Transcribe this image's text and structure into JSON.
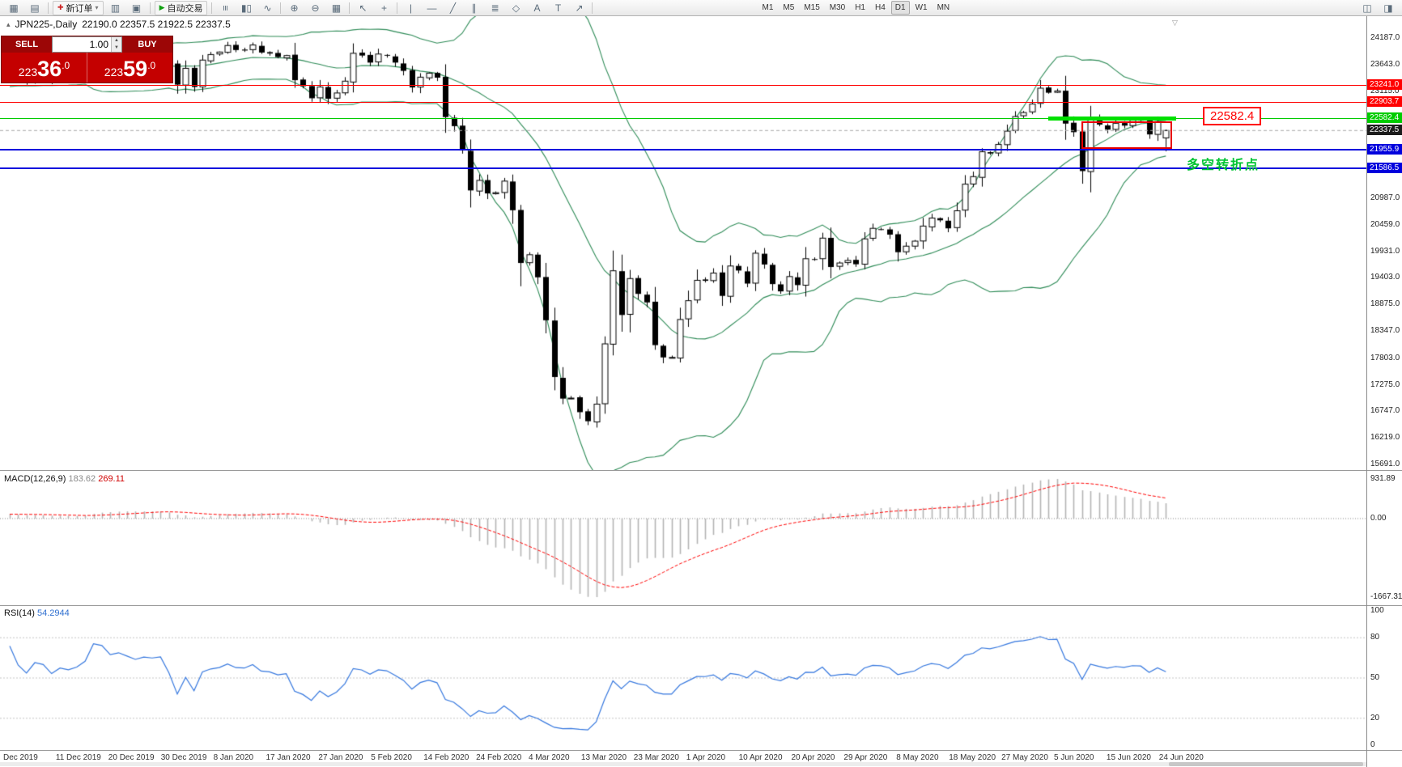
{
  "colors": {
    "candle_up": "#ffffff",
    "candle_down": "#000000",
    "candle_border": "#000000",
    "bollinger_green": "#2e8b57",
    "macd_hist_gray": "#b4b4b4",
    "macd_signal_red": "#ff0000",
    "rsi_blue": "#3577de",
    "line_red": "#ff0000",
    "line_blue": "#0000dd",
    "line_green": "#00cc00",
    "segment_lime": "#00e000",
    "annotation_green": "#00c432",
    "panel_red": "#c40000",
    "current_price_bg": "#1c1c1c"
  },
  "toolbar": {
    "items": [
      {
        "type": "icon",
        "name": "new-chart-icon",
        "glyph": "▦"
      },
      {
        "type": "icon",
        "name": "chart-profiles-icon",
        "glyph": "▤"
      },
      {
        "type": "sep"
      },
      {
        "type": "button",
        "name": "new-order-button",
        "label": "新订单",
        "glyph": "✚",
        "glyph_color": "#cc2222",
        "caret": "▾"
      },
      {
        "type": "icon",
        "name": "market-watch-icon",
        "glyph": "▥"
      },
      {
        "type": "icon",
        "name": "terminal-icon",
        "glyph": "▣"
      },
      {
        "type": "sep"
      },
      {
        "type": "button",
        "name": "auto-trading-button",
        "label": "自动交易",
        "glyph": "▶",
        "glyph_color": "#11a011"
      },
      {
        "type": "sep"
      },
      {
        "type": "icon",
        "name": "bars-chart-icon",
        "glyph": "≡",
        "rot": true
      },
      {
        "type": "icon",
        "name": "candles-chart-icon",
        "glyph": "▮▯"
      },
      {
        "type": "icon",
        "name": "line-chart-icon",
        "glyph": "∿"
      },
      {
        "type": "sep"
      },
      {
        "type": "icon",
        "name": "zoom-in-icon",
        "glyph": "⊕"
      },
      {
        "type": "icon",
        "name": "zoom-out-icon",
        "glyph": "⊖"
      },
      {
        "type": "icon",
        "name": "auto-arrange-icon",
        "glyph": "▦"
      },
      {
        "type": "sep"
      },
      {
        "type": "icon",
        "name": "cursor-icon",
        "glyph": "↖"
      },
      {
        "type": "icon",
        "name": "crosshair-icon",
        "glyph": "+"
      },
      {
        "type": "sep"
      },
      {
        "type": "icon",
        "name": "vertical-line-icon",
        "glyph": "|"
      },
      {
        "type": "icon",
        "name": "horizontal-line-icon",
        "glyph": "—"
      },
      {
        "type": "icon",
        "name": "trendline-icon",
        "glyph": "╱"
      },
      {
        "type": "icon",
        "name": "equidistant-channel-icon",
        "glyph": "∥"
      },
      {
        "type": "icon",
        "name": "fibonacci-icon",
        "glyph": "≣"
      },
      {
        "type": "icon",
        "name": "shapes-icon",
        "glyph": "◇"
      },
      {
        "type": "icon",
        "name": "text-icon",
        "glyph": "A"
      },
      {
        "type": "icon",
        "name": "text-label-icon",
        "glyph": "T"
      },
      {
        "type": "icon",
        "name": "arrows-icon",
        "glyph": "↗"
      },
      {
        "type": "sep"
      },
      {
        "type": "gap"
      },
      {
        "type": "tf",
        "label": "M1"
      },
      {
        "type": "tf",
        "label": "M5"
      },
      {
        "type": "tf",
        "label": "M15"
      },
      {
        "type": "tf",
        "label": "M30"
      },
      {
        "type": "tf",
        "label": "H1"
      },
      {
        "type": "tf",
        "label": "H4"
      },
      {
        "type": "tf",
        "label": "D1",
        "active": true
      },
      {
        "type": "tf",
        "label": "W1"
      },
      {
        "type": "tf",
        "label": "MN"
      },
      {
        "type": "spacer"
      },
      {
        "type": "icon",
        "name": "window-cascade-icon",
        "glyph": "◫"
      },
      {
        "type": "icon",
        "name": "window-tile-icon",
        "glyph": "◨"
      }
    ]
  },
  "chart_header": {
    "marker_icon": "▴",
    "symbol": "JPN225-,Daily",
    "ohlc": "22190.0 22357.5 21922.5 22337.5"
  },
  "order_panel": {
    "sell_label": "SELL",
    "buy_label": "BUY",
    "lot_value": "1.00",
    "spin_up_icon": "▲",
    "spin_down_icon": "▼",
    "sell_price": "22336.0",
    "buy_price": "22359.0"
  },
  "main_chart": {
    "axis_labels": [
      "24187.0",
      "23643.0",
      "23115.0",
      "20987.0",
      "20459.0",
      "19931.0",
      "19403.0",
      "18875.0",
      "18347.0",
      "17803.0",
      "17275.0",
      "16747.0",
      "16219.0",
      "15691.0"
    ],
    "levels": [
      {
        "label": "23241.0",
        "value": 23241.0,
        "color": "#ff0000",
        "thickness": 1
      },
      {
        "label": "22903.7",
        "value": 22903.7,
        "color": "#ff0000",
        "thickness": 1
      },
      {
        "label": "22582.4",
        "value": 22582.4,
        "color": "#00cc00",
        "thickness": 1
      },
      {
        "label": "21955.9",
        "value": 21955.9,
        "color": "#0000dd",
        "thickness": 2
      },
      {
        "label": "21586.5",
        "value": 21586.5,
        "color": "#0000dd",
        "thickness": 2
      }
    ],
    "current_price": {
      "label": "22337.5",
      "value": 22337.5
    },
    "price_tag": "22582.4",
    "annotation": "多空转折点",
    "shift_marker_icon": "▽"
  },
  "macd": {
    "name": "MACD(12,26,9)",
    "value_main": "183.62",
    "value_signal": "269.11",
    "axis": [
      "931.89",
      "0.00",
      "-1667.31"
    ]
  },
  "rsi": {
    "name": "RSI(14)",
    "value": "54.2944",
    "axis": [
      "100",
      "80",
      "50",
      "20",
      "0"
    ],
    "level_lines": [
      80,
      50,
      20
    ]
  },
  "dates": [
    "Dec 2019",
    "11 Dec 2019",
    "20 Dec 2019",
    "30 Dec 2019",
    "8 Jan 2020",
    "17 Jan 2020",
    "27 Jan 2020",
    "5 Feb 2020",
    "14 Feb 2020",
    "24 Feb 2020",
    "4 Mar 2020",
    "13 Mar 2020",
    "23 Mar 2020",
    "1 Apr 2020",
    "10 Apr 2020",
    "20 Apr 2020",
    "29 Apr 2020",
    "8 May 2020",
    "18 May 2020",
    "27 May 2020",
    "5 Jun 2020",
    "15 Jun 2020",
    "24 Jun 2020"
  ],
  "chart_data": {
    "type": "candlestick",
    "symbol": "JPN225",
    "period": "Daily",
    "last_ohlc": {
      "open": 22190.0,
      "high": 22357.5,
      "low": 21922.5,
      "close": 22337.5
    },
    "indicators": {
      "bollinger": {
        "period": 20,
        "deviation": 2
      },
      "macd": {
        "fast": 12,
        "slow": 26,
        "signal": 9,
        "current": 183.62,
        "signal_current": 269.11,
        "max": 931.89,
        "min": -1667.31
      },
      "rsi": {
        "period": 14,
        "current": 54.2944
      }
    },
    "warmup_closes": [
      22850,
      22900,
      22970,
      23000,
      23050,
      23090,
      23120,
      23180,
      23250,
      23300,
      23330,
      23270,
      23300,
      23340,
      23290,
      23310,
      23350,
      23380,
      23300,
      23250,
      23280,
      23320,
      23350,
      23300,
      23380,
      23420,
      23450,
      23430,
      23380,
      23410
    ],
    "closes": [
      23530,
      23380,
      23300,
      23450,
      23430,
      23330,
      23410,
      23390,
      23430,
      23520,
      23950,
      23930,
      23820,
      23870,
      23830,
      23790,
      23840,
      23830,
      23850,
      23660,
      23250,
      23575,
      23205,
      23740,
      23850,
      23900,
      24030,
      23940,
      23930,
      24040,
      23890,
      23870,
      23800,
      23830,
      23340,
      23220,
      22980,
      23205,
      22970,
      23085,
      23320,
      23875,
      23830,
      23690,
      23860,
      23830,
      23690,
      23525,
      23195,
      23400,
      23480,
      23390,
      22605,
      22425,
      21950,
      21145,
      21345,
      21085,
      21100,
      21330,
      20750,
      19700,
      19865,
      19415,
      18560,
      17430,
      17000,
      17010,
      16730,
      16550,
      16890,
      18090,
      19545,
      18665,
      19390,
      19085,
      18915,
      18065,
      17820,
      17820,
      18575,
      18950,
      19355,
      19345,
      19500,
      19045,
      19640,
      19550,
      19290,
      19895,
      19670,
      19280,
      19135,
      19430,
      19260,
      19785,
      19770,
      20195,
      19620,
      19700,
      19750,
      19675,
      20180,
      20390,
      20365,
      20265,
      19915,
      20035,
      20135,
      20435,
      20595,
      20550,
      20390,
      20740,
      21270,
      21420,
      21915,
      21880,
      22060,
      22325,
      22615,
      22695,
      22865,
      23180,
      23090,
      23125,
      22475,
      22305,
      21530,
      22580,
      22455,
      22355,
      22480,
      22435,
      22550,
      22535,
      22260,
      22510,
      22337.5
    ]
  }
}
